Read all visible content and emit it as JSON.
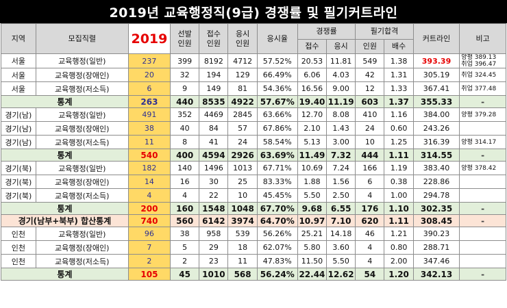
{
  "title": "2019년 교육행정직(9급) 경쟁률 및 필기커트라인",
  "headers": {
    "region": "지역",
    "position": "모집직렬",
    "year": "2019",
    "select1": "선발",
    "select2": "인원",
    "apply1": "접수",
    "apply2": "인원",
    "exam1": "응시",
    "exam2": "인원",
    "exam_rate": "응시율",
    "competition": "경쟁률",
    "comp_apply": "접수",
    "comp_exam": "응시",
    "pass": "필기합격",
    "pass_people": "인원",
    "pass_mult": "배수",
    "cutline": "커트라인",
    "note": "비고"
  },
  "rows": [
    {
      "type": "data",
      "region": "서울",
      "position": "교육행정(일반)",
      "r2019": "237",
      "sel": "399",
      "app": "8192",
      "exm": "4712",
      "rate": "57.52%",
      "c1": "20.53",
      "c2": "11.81",
      "pp": "549",
      "pm": "1.38",
      "cut": "393.39",
      "cut_red": true,
      "note1": "양평 389.13",
      "note2": "취업 396.47"
    },
    {
      "type": "data",
      "region": "서울",
      "position": "교육행정(장애인)",
      "r2019": "20",
      "sel": "32",
      "app": "194",
      "exm": "129",
      "rate": "66.49%",
      "c1": "6.06",
      "c2": "4.03",
      "pp": "42",
      "pm": "1.31",
      "cut": "305.19",
      "note1": "취업 324.45",
      "note2": ""
    },
    {
      "type": "data",
      "region": "서울",
      "position": "교육행정(저소득)",
      "r2019": "6",
      "sel": "9",
      "app": "149",
      "exm": "81",
      "rate": "54.36%",
      "c1": "16.56",
      "c2": "9.00",
      "pp": "12",
      "pm": "1.33",
      "cut": "367.41",
      "note1": "취업 377.48",
      "note2": ""
    },
    {
      "type": "sum",
      "label": "통계",
      "r2019": "263",
      "sel": "440",
      "app": "8535",
      "exm": "4922",
      "rate": "57.67%",
      "c1": "19.40",
      "c2": "11.19",
      "pp": "603",
      "pm": "1.37",
      "cut": "355.33",
      "note1": "-"
    },
    {
      "type": "data",
      "region": "경기(남)",
      "position": "교육행정(일반)",
      "r2019": "491",
      "sel": "352",
      "app": "4469",
      "exm": "2845",
      "rate": "63.66%",
      "c1": "12.70",
      "c2": "8.08",
      "pp": "410",
      "pm": "1.16",
      "cut": "384.00",
      "note1": "양평 379.28",
      "note2": ""
    },
    {
      "type": "data",
      "region": "경기(남)",
      "position": "교육행정(장애인)",
      "r2019": "38",
      "sel": "40",
      "app": "84",
      "exm": "57",
      "rate": "67.86%",
      "c1": "2.10",
      "c2": "1.43",
      "pp": "24",
      "pm": "0.60",
      "cut": "243.26",
      "note1": "",
      "note2": ""
    },
    {
      "type": "data",
      "region": "경기(남)",
      "position": "교육행정(저소득)",
      "r2019": "11",
      "sel": "8",
      "app": "41",
      "exm": "24",
      "rate": "58.54%",
      "c1": "5.13",
      "c2": "3.00",
      "pp": "10",
      "pm": "1.25",
      "cut": "316.39",
      "note1": "양평 314.17",
      "note2": ""
    },
    {
      "type": "sum",
      "label": "통계",
      "r2019": "540",
      "sel": "400",
      "app": "4594",
      "exm": "2926",
      "rate": "63.69%",
      "c1": "11.49",
      "c2": "7.32",
      "pp": "444",
      "pm": "1.11",
      "cut": "314.55",
      "note1": "-",
      "red": true
    },
    {
      "type": "data",
      "region": "경기(북)",
      "position": "교육행정(일반)",
      "r2019": "182",
      "sel": "140",
      "app": "1496",
      "exm": "1013",
      "rate": "67.71%",
      "c1": "10.69",
      "c2": "7.24",
      "pp": "166",
      "pm": "1.19",
      "cut": "383.40",
      "note1": "양평 378.42",
      "note2": ""
    },
    {
      "type": "data",
      "region": "경기(북)",
      "position": "교육행정(장애인)",
      "r2019": "14",
      "sel": "16",
      "app": "30",
      "exm": "25",
      "rate": "83.33%",
      "c1": "1.88",
      "c2": "1.56",
      "pp": "6",
      "pm": "0.38",
      "cut": "228.86",
      "note1": "",
      "note2": ""
    },
    {
      "type": "data",
      "region": "경기(북)",
      "position": "교육행정(저소득)",
      "r2019": "4",
      "sel": "4",
      "app": "22",
      "exm": "10",
      "rate": "45.45%",
      "c1": "5.50",
      "c2": "2.50",
      "pp": "4",
      "pm": "1.00",
      "cut": "294.78",
      "note1": "",
      "note2": ""
    },
    {
      "type": "sum",
      "label": "통계",
      "r2019": "200",
      "sel": "160",
      "app": "1548",
      "exm": "1048",
      "rate": "67.70%",
      "c1": "9.68",
      "c2": "6.55",
      "pp": "176",
      "pm": "1.10",
      "cut": "302.35",
      "note1": "-",
      "red": true
    },
    {
      "type": "grand",
      "label": "경기(남부+북부) 합산통계",
      "r2019": "740",
      "sel": "560",
      "app": "6142",
      "exm": "3974",
      "rate": "64.70%",
      "c1": "10.97",
      "c2": "7.10",
      "pp": "620",
      "pm": "1.11",
      "cut": "308.45",
      "note1": "-"
    },
    {
      "type": "data",
      "region": "인천",
      "position": "교육행정(일반)",
      "r2019": "96",
      "sel": "38",
      "app": "958",
      "exm": "539",
      "rate": "56.26%",
      "c1": "25.21",
      "c2": "14.18",
      "pp": "46",
      "pm": "1.21",
      "cut": "390.23",
      "note1": "",
      "note2": ""
    },
    {
      "type": "data",
      "region": "인천",
      "position": "교육행정(장애인)",
      "r2019": "7",
      "sel": "5",
      "app": "29",
      "exm": "18",
      "rate": "62.07%",
      "c1": "5.80",
      "c2": "3.60",
      "pp": "4",
      "pm": "0.80",
      "cut": "288.71",
      "note1": "",
      "note2": ""
    },
    {
      "type": "data",
      "region": "인천",
      "position": "교육행정(저소득)",
      "r2019": "2",
      "sel": "2",
      "app": "23",
      "exm": "11",
      "rate": "47.83%",
      "c1": "11.50",
      "c2": "5.50",
      "pp": "4",
      "pm": "2.00",
      "cut": "347.46",
      "note1": "",
      "note2": ""
    },
    {
      "type": "sum",
      "label": "통계",
      "r2019": "105",
      "sel": "45",
      "app": "1010",
      "exm": "568",
      "rate": "56.24%",
      "c1": "22.44",
      "c2": "12.62",
      "pp": "54",
      "pm": "1.20",
      "cut": "342.13",
      "note1": "-",
      "red": true
    }
  ],
  "colors": {
    "header_gray": "#d9d9d9",
    "year_yellow": "#ffd966",
    "sum_green": "#e2efda",
    "grand_peach": "#fce4d6",
    "accent_red": "#e60000",
    "value_blue": "#2e3192"
  }
}
